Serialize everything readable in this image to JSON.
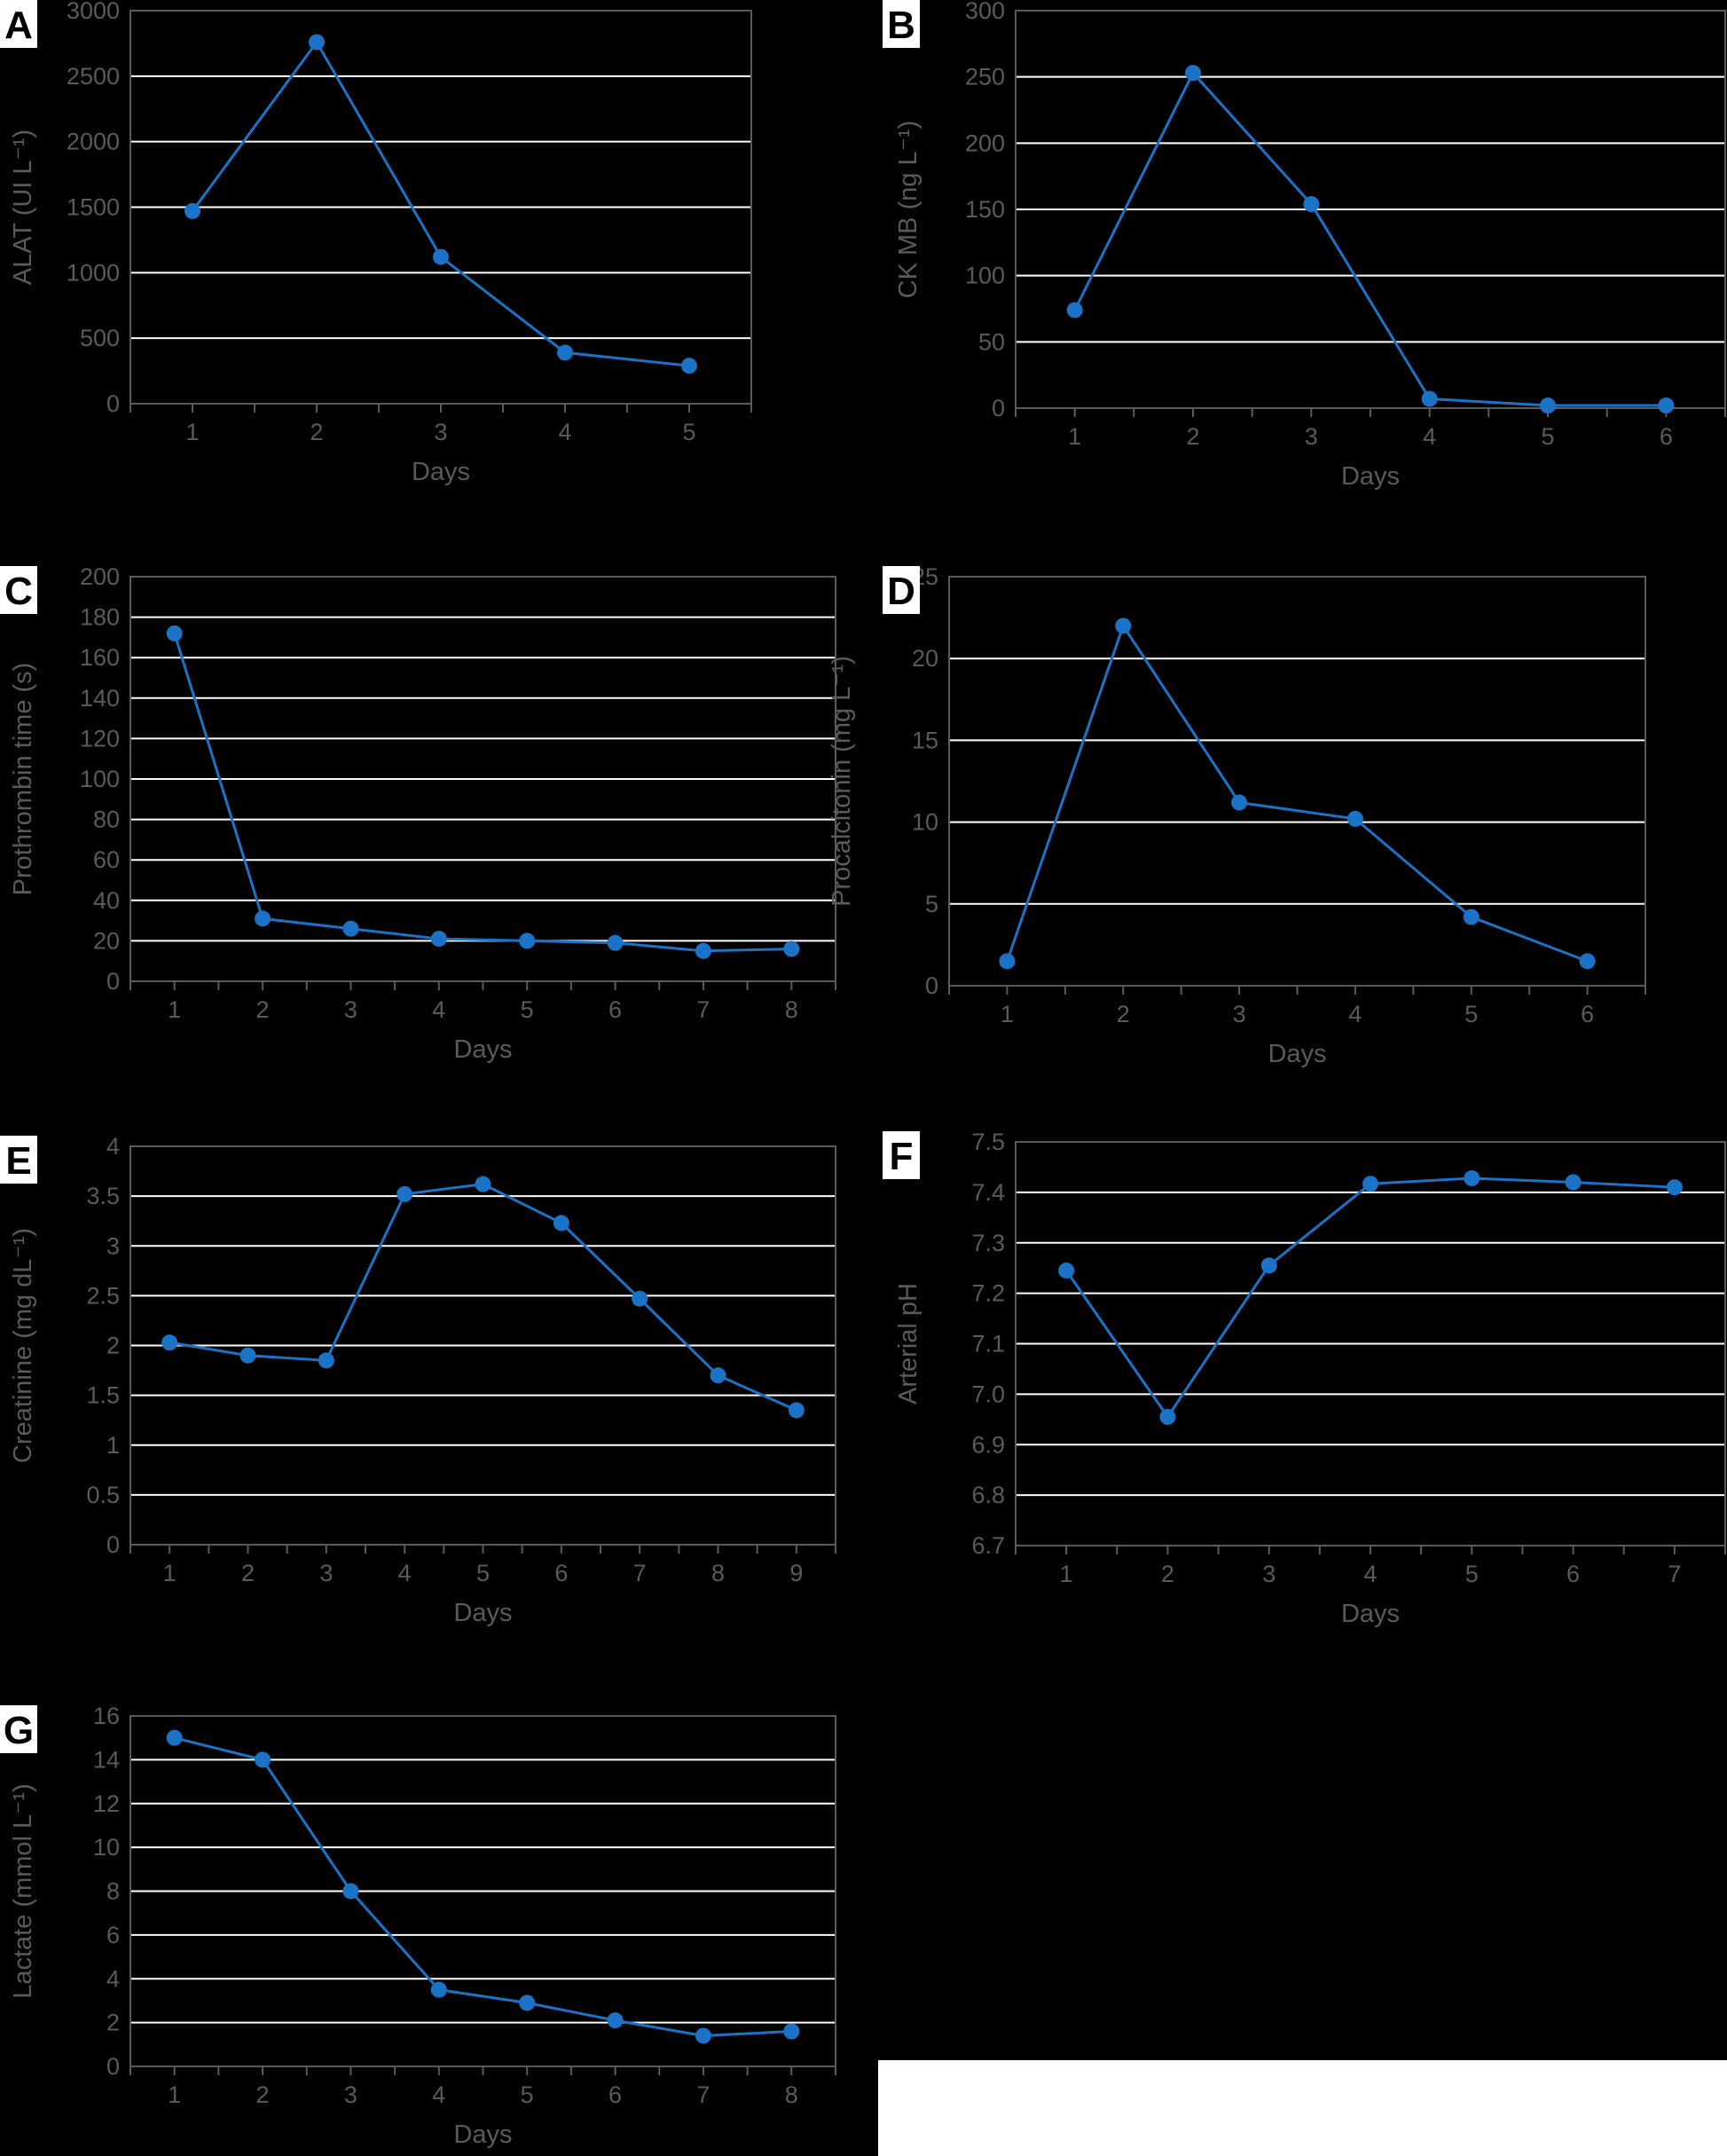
{
  "colors": {
    "background": "#000000",
    "series": "#1a73c6",
    "axis": "#5a5a5a",
    "grid": "#ffffff",
    "badge": "#ffffff"
  },
  "chart_data": [
    {
      "panel": "A",
      "type": "line",
      "xlabel": "Days",
      "ylabel": "ALAT (UI L⁻¹)",
      "grid": true,
      "x": [
        1,
        2,
        3,
        4,
        5
      ],
      "values": [
        1470,
        2760,
        1120,
        390,
        290
      ],
      "ylim": [
        0,
        3000
      ],
      "yticks": [
        0,
        500,
        1000,
        1500,
        2000,
        2500,
        3000
      ],
      "ytick_labels": [
        "0",
        "500",
        "1000",
        "1500",
        "2000",
        "2500",
        "3000"
      ]
    },
    {
      "panel": "B",
      "type": "line",
      "xlabel": "Days",
      "ylabel": "CK MB (ng L⁻¹)",
      "grid": true,
      "x": [
        1,
        2,
        3,
        4,
        5,
        6
      ],
      "values": [
        74,
        253,
        154,
        7,
        2,
        2
      ],
      "ylim": [
        0,
        300
      ],
      "yticks": [
        0,
        50,
        100,
        150,
        200,
        250,
        300
      ],
      "ytick_labels": [
        "0",
        "50",
        "100",
        "150",
        "200",
        "250",
        "300"
      ]
    },
    {
      "panel": "C",
      "type": "line",
      "xlabel": "Days",
      "ylabel": "Prothrombin time (s)",
      "grid": true,
      "x": [
        1,
        2,
        3,
        4,
        5,
        6,
        7,
        8
      ],
      "values": [
        172,
        31,
        26,
        21,
        20,
        19,
        15,
        16
      ],
      "ylim": [
        0,
        200
      ],
      "yticks": [
        0,
        20,
        40,
        60,
        80,
        100,
        120,
        140,
        160,
        180,
        200
      ],
      "ytick_labels": [
        "0",
        "20",
        "40",
        "60",
        "80",
        "100",
        "120",
        "140",
        "160",
        "180",
        "200"
      ]
    },
    {
      "panel": "D",
      "type": "line",
      "xlabel": "Days",
      "ylabel": "Procalcitonin (mg L⁻¹)",
      "grid": true,
      "x": [
        1,
        2,
        3,
        4,
        5,
        6
      ],
      "values": [
        1.5,
        22,
        11.2,
        10.2,
        4.2,
        1.5
      ],
      "ylim": [
        0,
        25
      ],
      "yticks": [
        0,
        5,
        10,
        15,
        20,
        25
      ],
      "ytick_labels": [
        "0",
        "5",
        "10",
        "15",
        "20",
        "25"
      ]
    },
    {
      "panel": "E",
      "type": "line",
      "xlabel": "Days",
      "ylabel": "Creatinine (mg dL⁻¹)",
      "grid": true,
      "x": [
        1,
        2,
        3,
        4,
        5,
        6,
        7,
        8,
        9
      ],
      "values": [
        2.03,
        1.9,
        1.85,
        3.52,
        3.62,
        3.23,
        2.47,
        1.7,
        1.35
      ],
      "ylim": [
        0,
        4
      ],
      "yticks": [
        0,
        0.5,
        1,
        1.5,
        2,
        2.5,
        3,
        3.5,
        4
      ],
      "ytick_labels": [
        "0",
        "0.5",
        "1",
        "1.5",
        "2",
        "2.5",
        "3",
        "3.5",
        "4"
      ]
    },
    {
      "panel": "F",
      "type": "line",
      "xlabel": "Days",
      "ylabel": "Arterial pH",
      "grid": true,
      "x": [
        1,
        2,
        3,
        4,
        5,
        6,
        7
      ],
      "values": [
        7.245,
        6.955,
        7.255,
        7.417,
        7.428,
        7.42,
        7.41
      ],
      "ylim": [
        6.7,
        7.5
      ],
      "yticks": [
        6.7,
        6.8,
        6.9,
        7.0,
        7.1,
        7.2,
        7.3,
        7.4,
        7.5
      ],
      "ytick_labels": [
        "6.7",
        "6.8",
        "6.9",
        "7.0",
        "7.1",
        "7.2",
        "7.3",
        "7.4",
        "7.5"
      ]
    },
    {
      "panel": "G",
      "type": "line",
      "xlabel": "Days",
      "ylabel": "Lactate (mmol L⁻¹)",
      "grid": true,
      "x": [
        1,
        2,
        3,
        4,
        5,
        6,
        7,
        8
      ],
      "values": [
        15,
        14,
        8,
        3.5,
        2.9,
        2.1,
        1.4,
        1.6
      ],
      "ylim": [
        0,
        16
      ],
      "yticks": [
        0,
        2,
        4,
        6,
        8,
        10,
        12,
        14,
        16
      ],
      "ytick_labels": [
        "0",
        "2",
        "4",
        "6",
        "8",
        "10",
        "12",
        "14",
        "16"
      ]
    }
  ]
}
